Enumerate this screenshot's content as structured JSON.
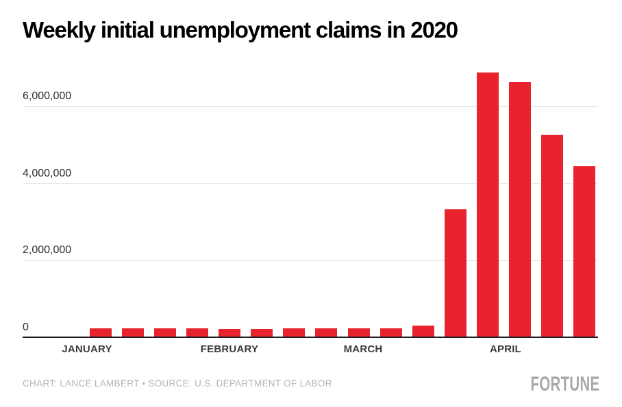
{
  "title": "Weekly initial unemployment claims in 2020",
  "footer": {
    "credit": "CHART: LANCE LAMBERT • SOURCE: U.S. DEPARTMENT OF LABOR",
    "brand": "FORTUNE"
  },
  "colors": {
    "bar": "#e8232e",
    "gridline": "#e3e3e3",
    "axis": "#1f1f1f",
    "tick_label": "#2b2b2b",
    "month_label": "#3b3b3b",
    "credit_text": "#b4b4b4",
    "brand_text": "#a8a8a8"
  },
  "chart_data": {
    "type": "bar",
    "title": "Weekly initial unemployment claims in 2020",
    "xlabel": "",
    "ylabel": "",
    "ylim": [
      0,
      7000000
    ],
    "grid": "horizontal",
    "legend": "none",
    "bar_color": "#e8232e",
    "x": [
      "week 1",
      "week 2",
      "week 3",
      "week 4",
      "week 5",
      "week 6",
      "week 7",
      "week 8",
      "week 9",
      "week 10",
      "week 11",
      "week 12",
      "week 13",
      "week 14",
      "week 15",
      "week 16"
    ],
    "values": [
      214000,
      205000,
      211000,
      212000,
      201000,
      204000,
      215000,
      219000,
      217000,
      211000,
      282000,
      3307000,
      6867000,
      6615000,
      5245000,
      4427000
    ],
    "x_month_labels": [
      "JANUARY",
      "FEBRUARY",
      "MARCH",
      "APRIL"
    ],
    "y_ticks": [
      {
        "value": 0,
        "label": "0"
      },
      {
        "value": 2000000,
        "label": "2,000,000"
      },
      {
        "value": 4000000,
        "label": "4,000,000"
      },
      {
        "value": 6000000,
        "label": "6,000,000"
      }
    ]
  }
}
